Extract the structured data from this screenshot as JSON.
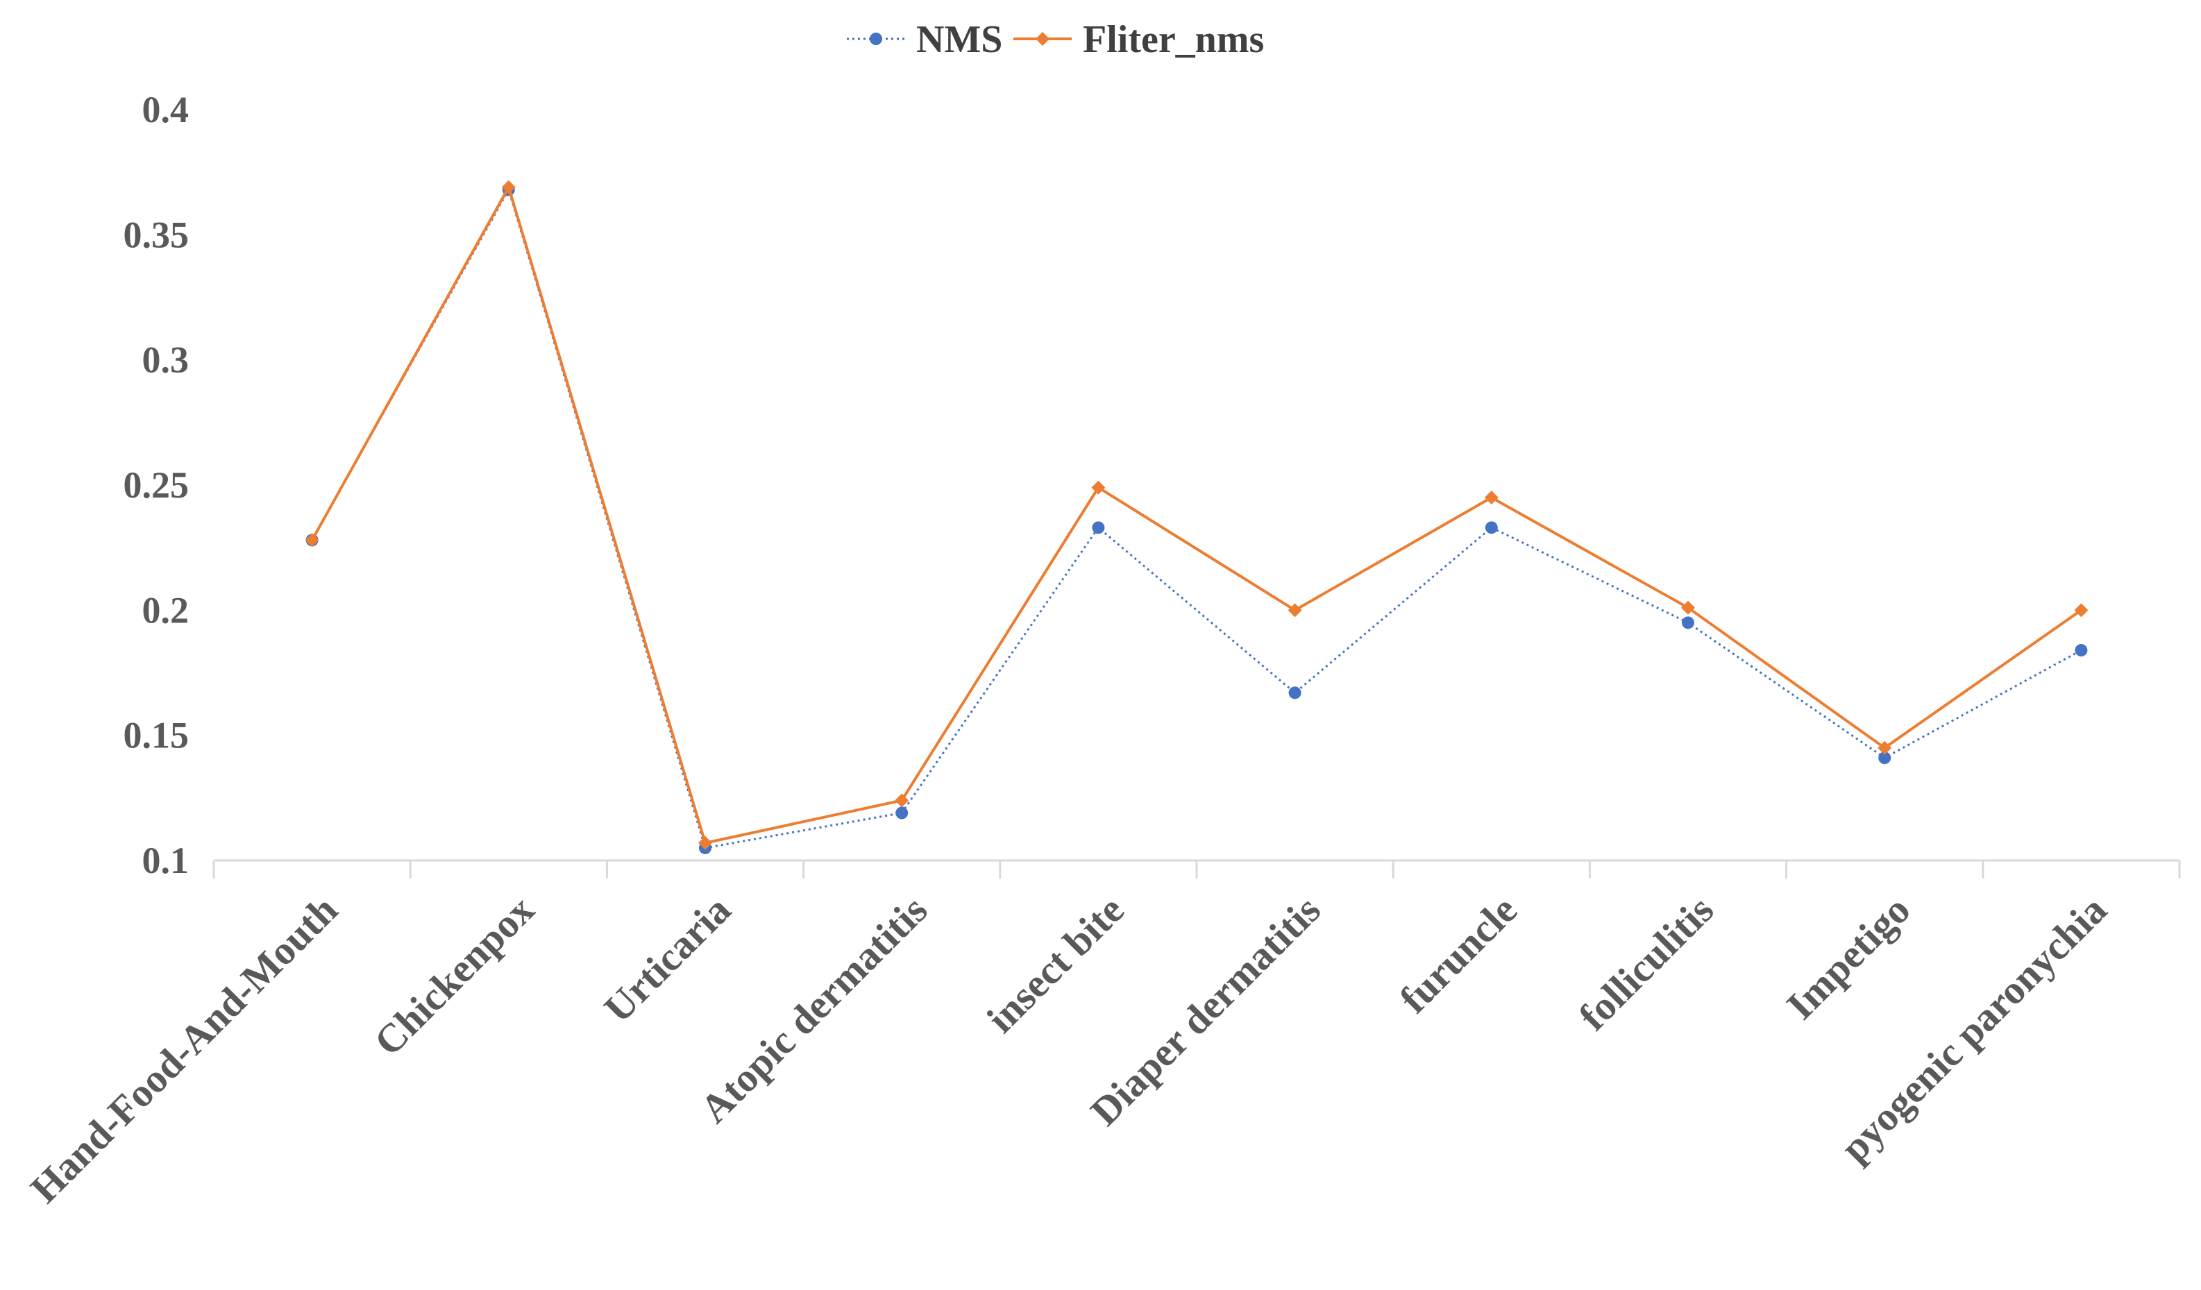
{
  "chart_data": {
    "type": "line",
    "title": "",
    "xlabel": "",
    "ylabel": "",
    "categories": [
      "Hand-Food-And-Mouth",
      "Chickenpox",
      "Urticaria",
      "Atopic dermatitis",
      "insect bite",
      "Diaper dermatitis",
      "furuncle",
      "folliculitis",
      "Impetigo",
      "pyogenic paronychia"
    ],
    "series": [
      {
        "name": "NMS",
        "color": "#4472C4",
        "line_style": "dotted",
        "marker": "circle",
        "values": [
          0.228,
          0.368,
          0.105,
          0.119,
          0.233,
          0.167,
          0.233,
          0.195,
          0.141,
          0.184
        ]
      },
      {
        "name": "Fliter_nms",
        "color": "#ED7D31",
        "line_style": "solid",
        "marker": "diamond",
        "values": [
          0.228,
          0.369,
          0.107,
          0.124,
          0.249,
          0.2,
          0.245,
          0.201,
          0.145,
          0.2
        ]
      }
    ],
    "ylim": [
      0.1,
      0.4
    ],
    "yticks": [
      0.1,
      0.15,
      0.2,
      0.25,
      0.3,
      0.35,
      0.4
    ],
    "ytick_labels": [
      "0.1",
      "0.15",
      "0.2",
      "0.25",
      "0.3",
      "0.35",
      "0.4"
    ],
    "grid": false,
    "legend_position": "top-center",
    "axis_color": "#D9D9D9",
    "tick_label_color": "#595959"
  }
}
